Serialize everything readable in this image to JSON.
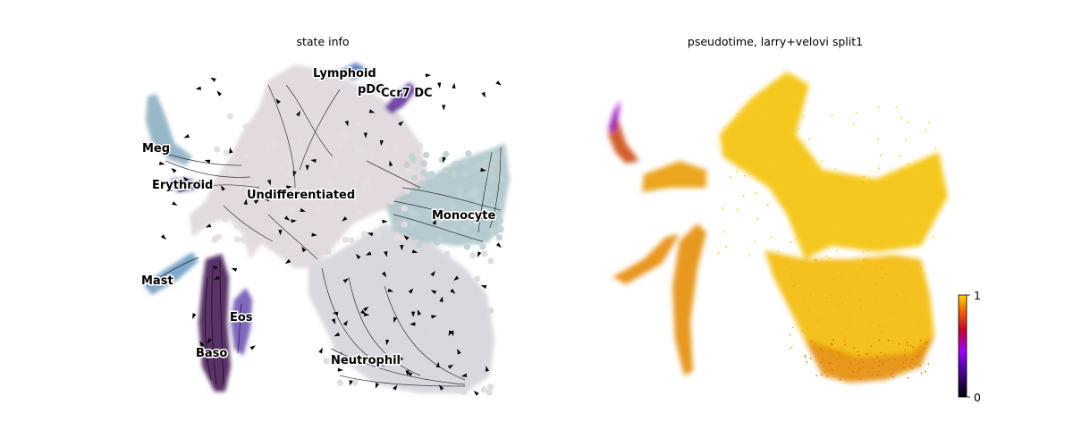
{
  "chart_data": [
    {
      "type": "scatter",
      "title": "state info",
      "overlay": "velocity streamlines with arrows",
      "labels": [
        "Lymphoid",
        "pDC",
        "Ccr7 DC",
        "Meg",
        "Erythroid",
        "Undifferentiated",
        "Monocyte",
        "Mast",
        "Eos",
        "Baso",
        "Neutrophil"
      ],
      "colors": {
        "Undifferentiated": "#e0d8dc",
        "Neutrophil": "#d6d6dc",
        "Monocyte": "#a9c2c8",
        "Meg": "#86aabf",
        "Erythroid": "#5b63ad",
        "Lymphoid": "#4a72b8",
        "pDC": "#b9a4b8",
        "Ccr7 DC": "#5b2a9a",
        "Mast": "#6a98c0",
        "Eos": "#6a4cb0",
        "Baso": "#3d0f4e"
      }
    },
    {
      "type": "scatter",
      "title": "pseudotime, larry+velovi split1",
      "colormap": "gnuplot",
      "colorbar": {
        "min": 0,
        "max": 1,
        "ticks": [
          "1",
          "0"
        ]
      }
    }
  ]
}
